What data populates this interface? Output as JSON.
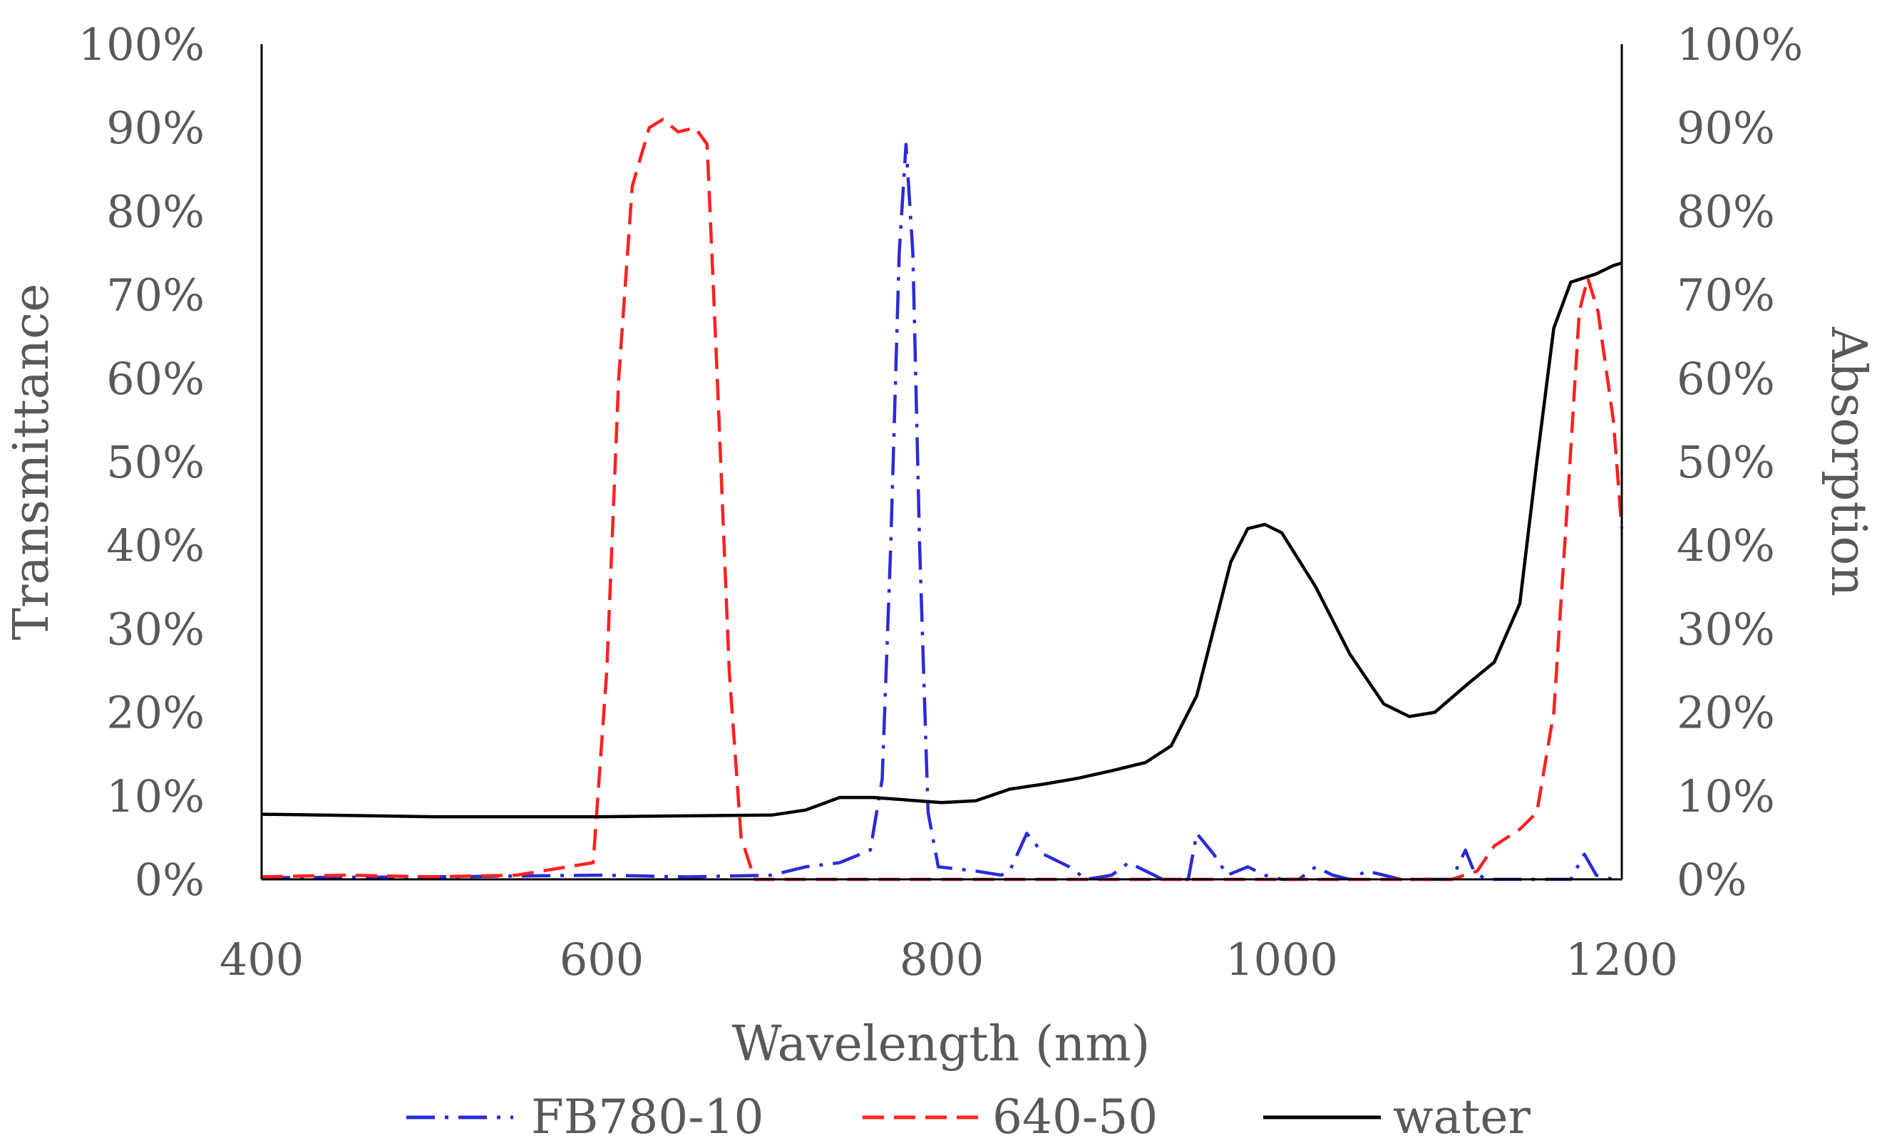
{
  "chart_data": {
    "type": "line",
    "title": "",
    "xlabel": "Wavelength (nm)",
    "ylabel_left": "Transmittance",
    "ylabel_right": "Absorption",
    "xlim": [
      400,
      1200
    ],
    "ylim": [
      0,
      100
    ],
    "x_ticks": [
      "400",
      "600",
      "800",
      "1000",
      "1200"
    ],
    "y_ticks": [
      "0%",
      "10%",
      "20%",
      "30%",
      "40%",
      "50%",
      "60%",
      "70%",
      "80%",
      "90%",
      "100%"
    ],
    "grid": false,
    "legend_position": "bottom",
    "series": [
      {
        "name": "FB780-10",
        "axis": "left",
        "color": "#2b2bd6",
        "style": "dash-dot",
        "points": [
          [
            400,
            0.2
          ],
          [
            500,
            0.3
          ],
          [
            600,
            0.5
          ],
          [
            650,
            0.3
          ],
          [
            700,
            0.5
          ],
          [
            720,
            1.5
          ],
          [
            740,
            2
          ],
          [
            758,
            3.5
          ],
          [
            765,
            12
          ],
          [
            770,
            40
          ],
          [
            775,
            75
          ],
          [
            779,
            88
          ],
          [
            783,
            75
          ],
          [
            787,
            40
          ],
          [
            792,
            8
          ],
          [
            798,
            1.5
          ],
          [
            820,
            1
          ],
          [
            835,
            0.5
          ],
          [
            840,
            1
          ],
          [
            850,
            5.5
          ],
          [
            860,
            3
          ],
          [
            875,
            1.5
          ],
          [
            885,
            0
          ],
          [
            900,
            0.5
          ],
          [
            910,
            2
          ],
          [
            920,
            1
          ],
          [
            930,
            0
          ],
          [
            945,
            0
          ],
          [
            950,
            5.5
          ],
          [
            960,
            3
          ],
          [
            968,
            0.5
          ],
          [
            980,
            1.5
          ],
          [
            990,
            0.5
          ],
          [
            1000,
            0
          ],
          [
            1010,
            0
          ],
          [
            1020,
            1.5
          ],
          [
            1030,
            0.5
          ],
          [
            1040,
            0
          ],
          [
            1050,
            1
          ],
          [
            1060,
            0.5
          ],
          [
            1070,
            0
          ],
          [
            1100,
            0
          ],
          [
            1108,
            3.5
          ],
          [
            1113,
            1
          ],
          [
            1120,
            0
          ],
          [
            1150,
            0
          ],
          [
            1170,
            0
          ],
          [
            1178,
            3
          ],
          [
            1185,
            0.5
          ],
          [
            1195,
            0
          ],
          [
            1200,
            0
          ]
        ]
      },
      {
        "name": "640-50",
        "axis": "left",
        "color": "#ff2020",
        "style": "dash",
        "points": [
          [
            400,
            0.3
          ],
          [
            450,
            0.5
          ],
          [
            500,
            0.3
          ],
          [
            550,
            0.5
          ],
          [
            580,
            1.5
          ],
          [
            595,
            2
          ],
          [
            603,
            25
          ],
          [
            610,
            60
          ],
          [
            618,
            83
          ],
          [
            628,
            90
          ],
          [
            636,
            91
          ],
          [
            645,
            89.5
          ],
          [
            655,
            90
          ],
          [
            662,
            88
          ],
          [
            668,
            60
          ],
          [
            675,
            25
          ],
          [
            682,
            5
          ],
          [
            690,
            0
          ],
          [
            700,
            0
          ],
          [
            800,
            0
          ],
          [
            900,
            0
          ],
          [
            1000,
            0
          ],
          [
            1100,
            0
          ],
          [
            1115,
            1
          ],
          [
            1125,
            4
          ],
          [
            1140,
            6
          ],
          [
            1150,
            8
          ],
          [
            1160,
            20
          ],
          [
            1168,
            45
          ],
          [
            1175,
            68
          ],
          [
            1180,
            72
          ],
          [
            1186,
            68
          ],
          [
            1195,
            55
          ],
          [
            1200,
            42
          ]
        ]
      },
      {
        "name": "water",
        "axis": "right",
        "color": "#000000",
        "style": "solid",
        "points": [
          [
            400,
            7.8
          ],
          [
            500,
            7.5
          ],
          [
            600,
            7.5
          ],
          [
            650,
            7.6
          ],
          [
            700,
            7.7
          ],
          [
            720,
            8.3
          ],
          [
            740,
            9.8
          ],
          [
            760,
            9.8
          ],
          [
            780,
            9.5
          ],
          [
            800,
            9.2
          ],
          [
            820,
            9.4
          ],
          [
            840,
            10.8
          ],
          [
            860,
            11.4
          ],
          [
            880,
            12.1
          ],
          [
            900,
            13
          ],
          [
            920,
            14
          ],
          [
            935,
            16
          ],
          [
            950,
            22
          ],
          [
            960,
            30
          ],
          [
            970,
            38
          ],
          [
            980,
            42
          ],
          [
            990,
            42.5
          ],
          [
            1000,
            41.5
          ],
          [
            1020,
            35
          ],
          [
            1040,
            27
          ],
          [
            1060,
            21
          ],
          [
            1075,
            19.5
          ],
          [
            1090,
            20
          ],
          [
            1110,
            23.5
          ],
          [
            1125,
            26
          ],
          [
            1140,
            33
          ],
          [
            1150,
            50
          ],
          [
            1160,
            66
          ],
          [
            1170,
            71.5
          ],
          [
            1185,
            72.5
          ],
          [
            1195,
            73.5
          ],
          [
            1200,
            73.8
          ]
        ]
      }
    ]
  }
}
